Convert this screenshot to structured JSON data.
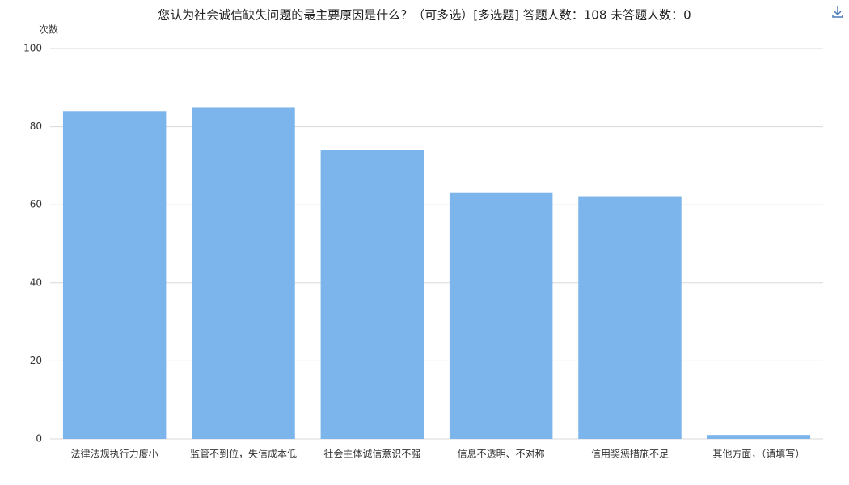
{
  "chart_data": {
    "type": "bar",
    "title": "您认为社会诚信缺失问题的最主要原因是什么？（可多选）[多选题]  答题人数：108  未答题人数：0",
    "y_label": "次数",
    "categories": [
      "法律法规执行力度小",
      "监管不到位，失信成本低",
      "社会主体诚信意识不强",
      "信息不透明、不对称",
      "信用奖惩措施不足",
      "其他方面，（请填写）"
    ],
    "values": [
      84,
      85,
      74,
      63,
      62,
      1
    ],
    "color": "#7cb5ec",
    "ylim": [
      0,
      100
    ],
    "yticks": [
      0,
      20,
      40,
      60,
      80,
      100
    ],
    "grid": true
  }
}
